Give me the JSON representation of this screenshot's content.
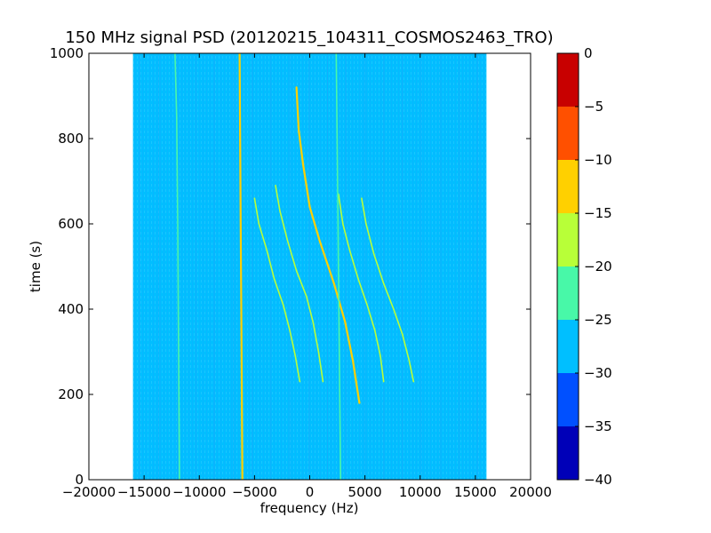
{
  "chart_data": {
    "type": "heatmap",
    "title": "150 MHz signal PSD (20120215_104311_COSMOS2463_TRO)",
    "xlabel": "frequency (Hz)",
    "ylabel": "time (s)",
    "xlim": [
      -20000,
      20000
    ],
    "ylim": [
      0,
      1000
    ],
    "x_ticks": [
      -20000,
      -15000,
      -10000,
      -5000,
      0,
      5000,
      10000,
      15000,
      20000
    ],
    "y_ticks": [
      0,
      200,
      400,
      600,
      800,
      1000
    ],
    "data_extent": {
      "x": [
        -16000,
        16000
      ],
      "y": [
        0,
        1000
      ]
    },
    "background_level": -27,
    "grid": false,
    "colorbar": {
      "levels": [
        -40,
        -35,
        -30,
        -25,
        -20,
        -15,
        -10,
        -5,
        0
      ],
      "tick_labels": [
        "-40",
        "-35",
        "-30",
        "-25",
        "-20",
        "-15",
        "-10",
        "-5",
        "0"
      ],
      "colors": [
        "#0000b8",
        "#0050ff",
        "#00bfff",
        "#48f8a8",
        "#b8ff38",
        "#ffd000",
        "#ff5000",
        "#c80000"
      ]
    },
    "series": [
      {
        "level": -20,
        "points": [
          [
            -12200,
            1000
          ],
          [
            -12050,
            850
          ],
          [
            -11950,
            600
          ],
          [
            -11900,
            400
          ],
          [
            -11850,
            200
          ],
          [
            -11800,
            0
          ]
        ]
      },
      {
        "level": -12,
        "points": [
          [
            -6350,
            1000
          ],
          [
            -6300,
            800
          ],
          [
            -6250,
            600
          ],
          [
            -6200,
            400
          ],
          [
            -6150,
            200
          ],
          [
            -6100,
            0
          ]
        ]
      },
      {
        "level": -12,
        "points": [
          [
            -1200,
            920
          ],
          [
            -1000,
            820
          ],
          [
            -600,
            740
          ],
          [
            0,
            640
          ],
          [
            900,
            560
          ],
          [
            2200,
            460
          ],
          [
            3200,
            370
          ],
          [
            3900,
            280
          ],
          [
            4500,
            180
          ]
        ]
      },
      {
        "level": -18,
        "points": [
          [
            -5000,
            660
          ],
          [
            -4600,
            600
          ],
          [
            -3900,
            540
          ],
          [
            -3200,
            470
          ],
          [
            -2400,
            410
          ],
          [
            -1800,
            350
          ],
          [
            -1300,
            290
          ],
          [
            -900,
            230
          ]
        ]
      },
      {
        "level": -18,
        "points": [
          [
            -3100,
            690
          ],
          [
            -2700,
            630
          ],
          [
            -2000,
            560
          ],
          [
            -1200,
            490
          ],
          [
            -300,
            430
          ],
          [
            300,
            370
          ],
          [
            800,
            300
          ],
          [
            1200,
            230
          ]
        ]
      },
      {
        "level": -18,
        "points": [
          [
            2600,
            670
          ],
          [
            3000,
            600
          ],
          [
            3600,
            540
          ],
          [
            4400,
            470
          ],
          [
            5200,
            410
          ],
          [
            5900,
            350
          ],
          [
            6400,
            290
          ],
          [
            6700,
            230
          ]
        ]
      },
      {
        "level": -18,
        "points": [
          [
            4700,
            660
          ],
          [
            5100,
            600
          ],
          [
            5800,
            530
          ],
          [
            6700,
            460
          ],
          [
            7600,
            400
          ],
          [
            8400,
            340
          ],
          [
            9000,
            280
          ],
          [
            9400,
            230
          ]
        ]
      },
      {
        "level": -22,
        "points": [
          [
            2400,
            1000
          ],
          [
            2500,
            750
          ],
          [
            2600,
            500
          ],
          [
            2700,
            250
          ],
          [
            2800,
            0
          ]
        ]
      }
    ]
  }
}
